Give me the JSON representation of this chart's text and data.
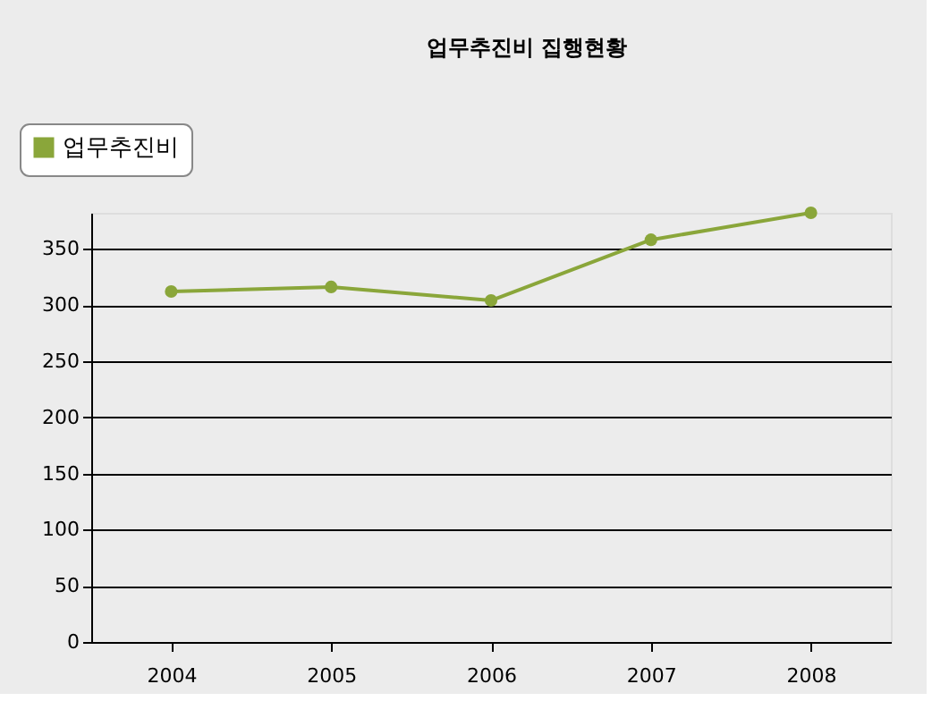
{
  "chart_data": {
    "type": "line",
    "title": "업무추진비 집행현황",
    "categories": [
      "2004",
      "2005",
      "2006",
      "2007",
      "2008"
    ],
    "series": [
      {
        "name": "업무추진비",
        "color": "#8aa63a",
        "values": [
          312,
          316,
          304,
          358,
          382
        ]
      }
    ],
    "ylim": [
      0,
      382
    ],
    "yticks": [
      0,
      50,
      100,
      150,
      200,
      250,
      300,
      350
    ],
    "grid": "y",
    "legend": "top left",
    "marker": "circle",
    "line_style": "solid"
  }
}
